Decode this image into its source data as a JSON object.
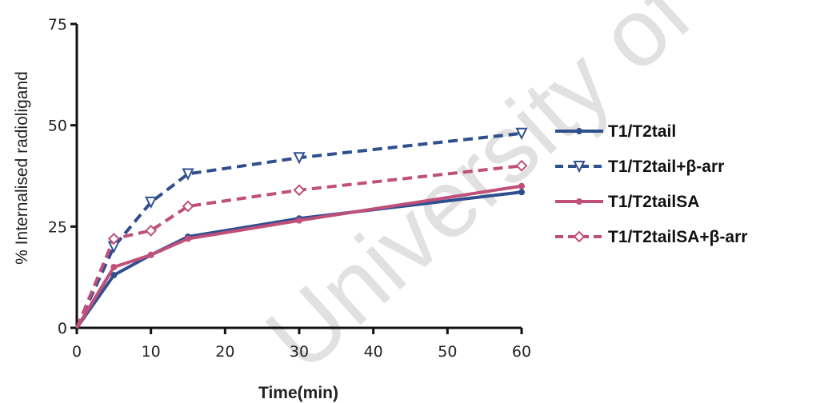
{
  "watermark": "University of Cape Town",
  "chart_data": {
    "type": "line",
    "title": "",
    "xlabel": "Time(min)",
    "ylabel": "% Internalised radioligand",
    "xlim": [
      0,
      60
    ],
    "ylim": [
      0,
      75
    ],
    "x_ticks": [
      0,
      10,
      20,
      30,
      40,
      50,
      60
    ],
    "y_ticks": [
      0,
      25,
      50,
      75
    ],
    "x": [
      0,
      5,
      10,
      15,
      30,
      60
    ],
    "grid": false,
    "legend_position": "right",
    "series": [
      {
        "name": "T1/T2tail",
        "color": "#2f4f8f",
        "dash": "solid",
        "marker": "dot",
        "values": [
          0,
          13,
          18,
          22.5,
          27,
          33.5
        ]
      },
      {
        "name": "T1/T2tail+β-arr",
        "color": "#2f4f8f",
        "dash": "dashed",
        "marker": "triangle-down",
        "values": [
          0,
          20,
          31,
          38,
          42,
          48
        ]
      },
      {
        "name": "T1/T2tailSA",
        "color": "#c0507a",
        "dash": "solid",
        "marker": "dot",
        "values": [
          0,
          15,
          18,
          22,
          26.5,
          35
        ]
      },
      {
        "name": "T1/T2tailSA+β-arr",
        "color": "#c0507a",
        "dash": "dashed",
        "marker": "diamond",
        "values": [
          0,
          22,
          24,
          30,
          34,
          40
        ]
      }
    ]
  }
}
